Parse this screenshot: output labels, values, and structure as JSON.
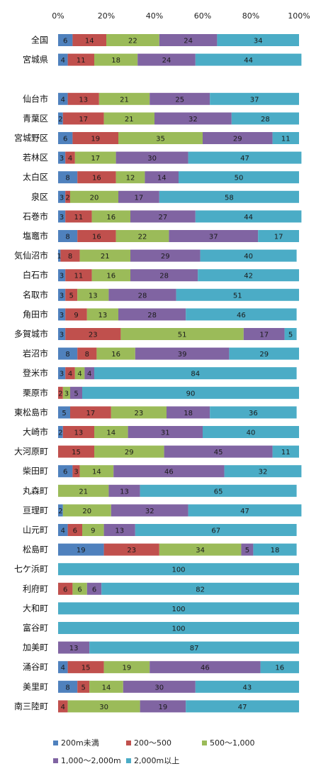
{
  "chart_data": {
    "type": "bar",
    "orientation": "horizontal",
    "stacked": "percent",
    "xlim": [
      0,
      100
    ],
    "x_ticks": [
      "0%",
      "20%",
      "40%",
      "60%",
      "80%",
      "100%"
    ],
    "x_tick_values": [
      0,
      20,
      40,
      60,
      80,
      100
    ],
    "x_axis_position": "top",
    "grid": false,
    "legend_placement": "bottom",
    "categories": [
      "全国",
      "宮城県",
      "",
      "仙台市",
      "青葉区",
      "宮城野区",
      "若林区",
      "太白区",
      "泉区",
      "石巻市",
      "塩竈市",
      "気仙沼市",
      "白石市",
      "名取市",
      "角田市",
      "多賀城市",
      "岩沼市",
      "登米市",
      "栗原市",
      "東松島市",
      "大崎市",
      "大河原町",
      "柴田町",
      "丸森町",
      "亘理町",
      "山元町",
      "松島町",
      "七ケ浜町",
      "利府町",
      "大和町",
      "富谷町",
      "加美町",
      "涌谷町",
      "美里町",
      "南三陸町"
    ],
    "series": [
      {
        "name": "200m未満",
        "color": "#4F81BD",
        "values": [
          6,
          4,
          null,
          4,
          2,
          6,
          3,
          8,
          3,
          3,
          8,
          1,
          3,
          3,
          3,
          3,
          8,
          3,
          0,
          5,
          2,
          0,
          6,
          0,
          2,
          4,
          19,
          0,
          0,
          0,
          0,
          0,
          4,
          8,
          0
        ]
      },
      {
        "name": "200～500",
        "color": "#C0504D",
        "values": [
          14,
          11,
          null,
          13,
          17,
          19,
          4,
          16,
          2,
          11,
          16,
          8,
          11,
          5,
          9,
          23,
          8,
          4,
          2,
          17,
          13,
          15,
          3,
          0,
          0,
          6,
          23,
          0,
          6,
          0,
          0,
          0,
          15,
          5,
          4
        ]
      },
      {
        "name": "500～1,000",
        "color": "#9BBB59",
        "values": [
          22,
          18,
          null,
          21,
          21,
          35,
          17,
          12,
          20,
          16,
          22,
          21,
          16,
          13,
          13,
          51,
          16,
          4,
          3,
          23,
          14,
          29,
          14,
          21,
          20,
          9,
          34,
          0,
          6,
          0,
          0,
          0,
          19,
          14,
          30
        ]
      },
      {
        "name": "1,000～2,000m",
        "color": "#8064A2",
        "values": [
          24,
          24,
          null,
          25,
          32,
          29,
          30,
          14,
          17,
          27,
          37,
          29,
          28,
          28,
          28,
          17,
          39,
          4,
          5,
          18,
          31,
          45,
          46,
          13,
          32,
          13,
          5,
          0,
          6,
          0,
          0,
          13,
          46,
          30,
          19
        ]
      },
      {
        "name": "2,000m以上",
        "color": "#4BACC6",
        "values": [
          34,
          44,
          null,
          37,
          28,
          11,
          47,
          50,
          58,
          44,
          17,
          40,
          42,
          51,
          46,
          5,
          29,
          84,
          90,
          36,
          40,
          11,
          32,
          65,
          47,
          67,
          18,
          100,
          82,
          100,
          100,
          87,
          16,
          43,
          47
        ]
      }
    ]
  }
}
